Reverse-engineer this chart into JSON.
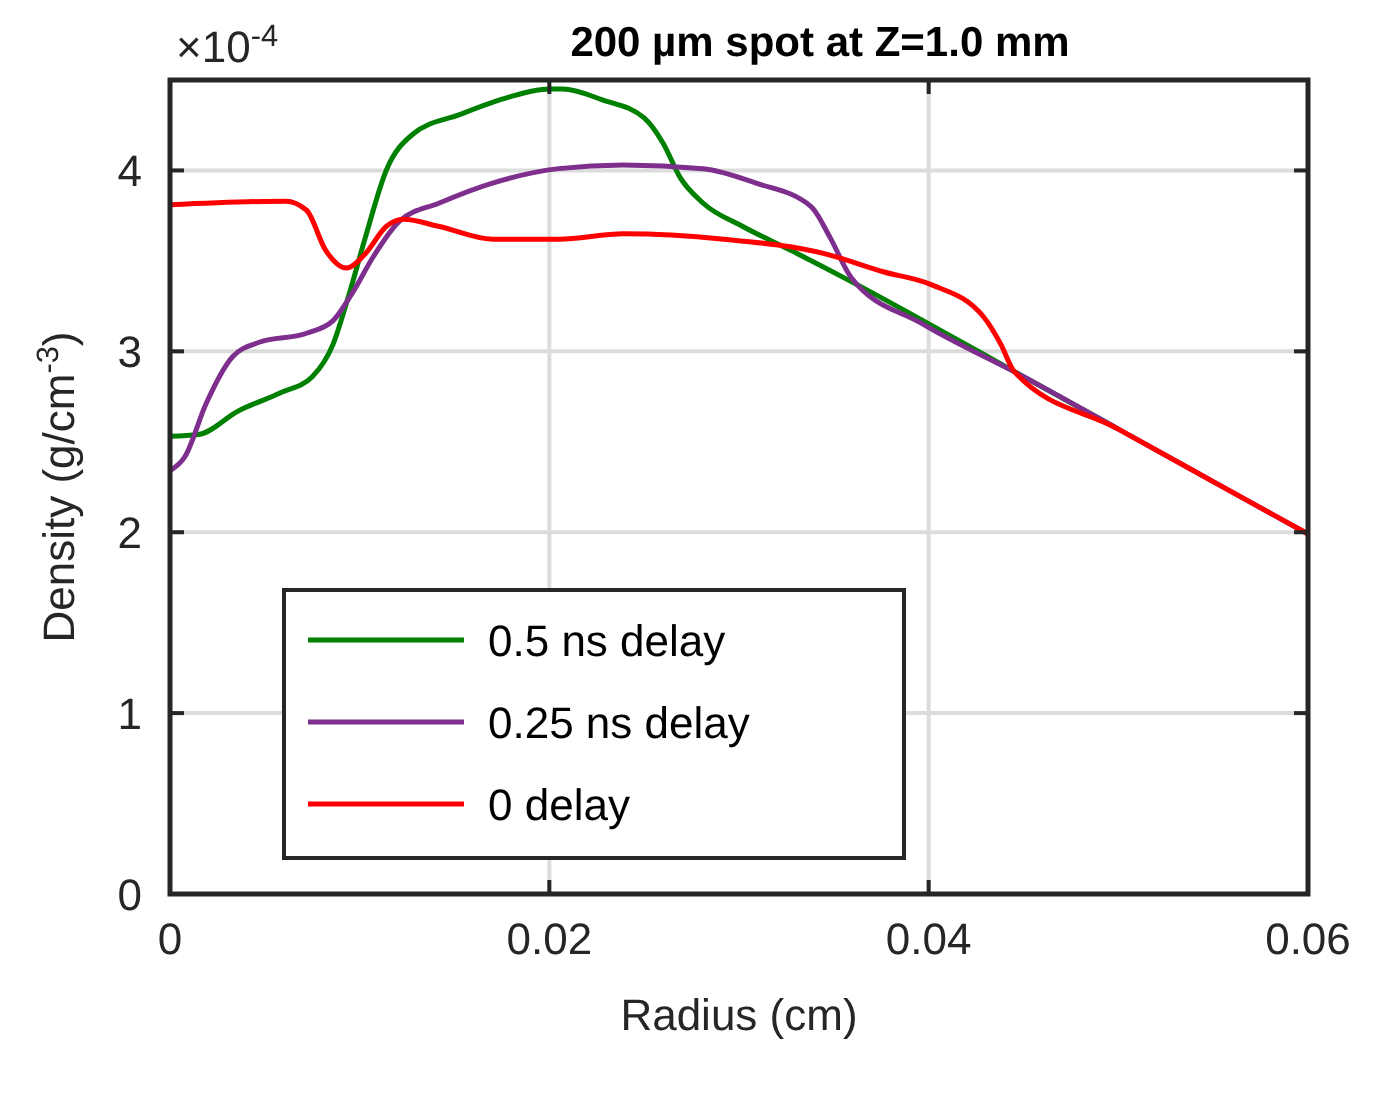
{
  "chart_data": {
    "type": "line",
    "title": "200 µm spot at Z=1.0 mm",
    "xlabel": "Radius (cm)",
    "ylabel": "Density (g/cm$^{-3}$)",
    "annotations": [
      "×10$^{-4}$"
    ],
    "xlim": [
      0,
      0.06
    ],
    "xticks": [
      0,
      0.02,
      0.04,
      0.06
    ],
    "ylim": [
      0,
      4.5
    ],
    "yticks": [
      0,
      1,
      2,
      3,
      4
    ],
    "grid": true,
    "legend": "bottom left",
    "line_style": "solid",
    "marker": "none",
    "series": [
      {
        "name": "0.5 ns delay",
        "color": "#008000",
        "x": [
          0,
          0.0015,
          0.0036,
          0.0058,
          0.0075,
          0.0086,
          0.0094,
          0.0103,
          0.0114,
          0.0128,
          0.0153,
          0.0177,
          0.02,
          0.0207,
          0.0228,
          0.025,
          0.026,
          0.0269,
          0.0281,
          0.0302,
          0.0327,
          0.0362,
          0.0397,
          0.045,
          0.05
        ],
        "values": [
          2.53,
          2.54,
          2.67,
          2.77,
          2.86,
          3.04,
          3.3,
          3.63,
          4.0,
          4.2,
          4.31,
          4.4,
          4.45,
          4.45,
          4.39,
          4.29,
          4.15,
          3.96,
          3.82,
          3.69,
          3.56,
          3.37,
          3.17,
          2.86,
          2.57
        ]
      },
      {
        "name": "0.25 ns delay",
        "color": "#7e2f8e",
        "x": [
          0,
          0.0008,
          0.0019,
          0.0033,
          0.0047,
          0.0072,
          0.0086,
          0.0096,
          0.0107,
          0.0121,
          0.0142,
          0.017,
          0.0205,
          0.0239,
          0.0281,
          0.0309,
          0.0338,
          0.0348,
          0.0359,
          0.0397,
          0.045,
          0.05,
          0.055,
          0.06
        ],
        "values": [
          2.34,
          2.42,
          2.71,
          2.97,
          3.05,
          3.1,
          3.17,
          3.32,
          3.52,
          3.72,
          3.82,
          3.93,
          4.01,
          4.03,
          4.01,
          3.93,
          3.8,
          3.63,
          3.41,
          3.15,
          2.86,
          2.57,
          2.28,
          1.99
        ]
      },
      {
        "name": "0 delay",
        "color": "#ff0000",
        "x": [
          0,
          0.0061,
          0.0072,
          0.0082,
          0.0093,
          0.0103,
          0.0114,
          0.0123,
          0.0142,
          0.017,
          0.0205,
          0.0239,
          0.0292,
          0.0345,
          0.0376,
          0.0401,
          0.0429,
          0.0438,
          0.0445,
          0.05,
          0.055,
          0.06
        ],
        "values": [
          3.81,
          3.83,
          3.78,
          3.56,
          3.46,
          3.54,
          3.69,
          3.73,
          3.69,
          3.62,
          3.62,
          3.65,
          3.62,
          3.54,
          3.44,
          3.37,
          3.19,
          3.04,
          2.89,
          2.57,
          2.28,
          1.99
        ]
      }
    ]
  }
}
